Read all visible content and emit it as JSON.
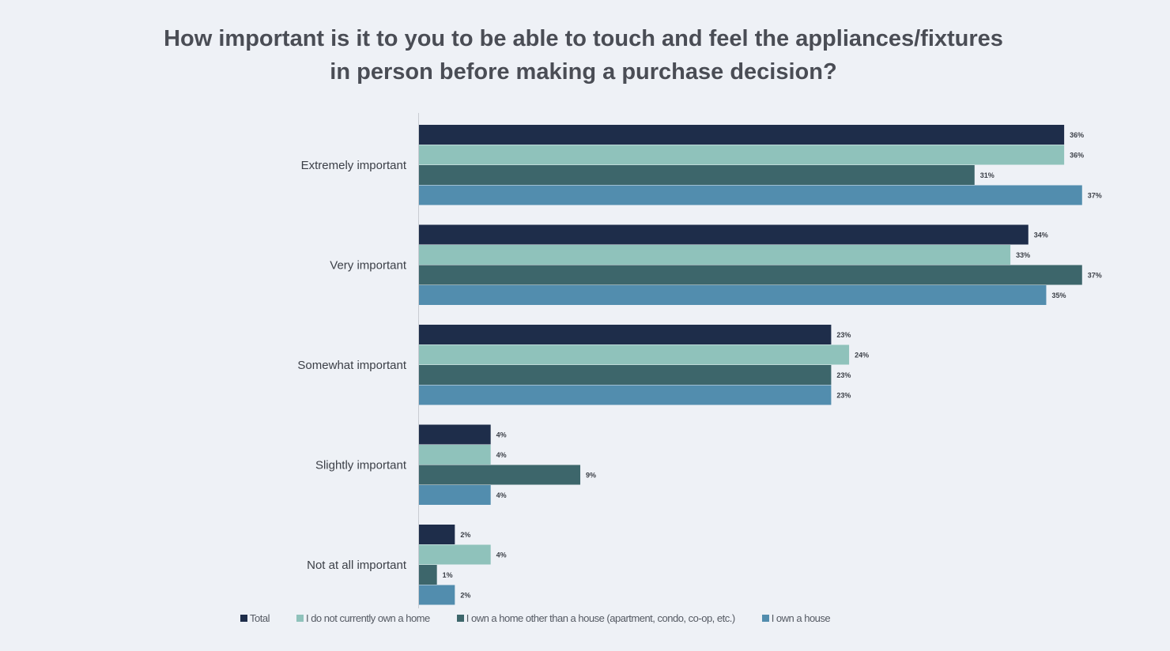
{
  "chart_data": {
    "type": "bar",
    "orientation": "horizontal",
    "title": "How important is it to you to be able to touch and feel the appliances/fixtures in person before making a purchase decision?",
    "title_lines": [
      "How important is it to you to be able to touch and feel the appliances/fixtures",
      "in person before making a purchase decision?"
    ],
    "categories": [
      "Extremely important",
      "Very important",
      "Somewhat important",
      "Slightly important",
      "Not at all important"
    ],
    "series": [
      {
        "name": "Total",
        "color": "#1e2d4a",
        "values": [
          36,
          34,
          23,
          4,
          2
        ]
      },
      {
        "name": "I do not currently own a home",
        "color": "#8fc2bb",
        "values": [
          36,
          33,
          24,
          4,
          4
        ]
      },
      {
        "name": "I own a home other than a house (apartment, condo, co-op, etc.)",
        "color": "#3d666b",
        "values": [
          31,
          37,
          23,
          9,
          1
        ]
      },
      {
        "name": "I own a house",
        "color": "#528dae",
        "values": [
          37,
          35,
          23,
          4,
          2
        ]
      }
    ],
    "value_format": "{v}%",
    "xlim": [
      0,
      40
    ],
    "grid": false,
    "legend": "bottom"
  }
}
